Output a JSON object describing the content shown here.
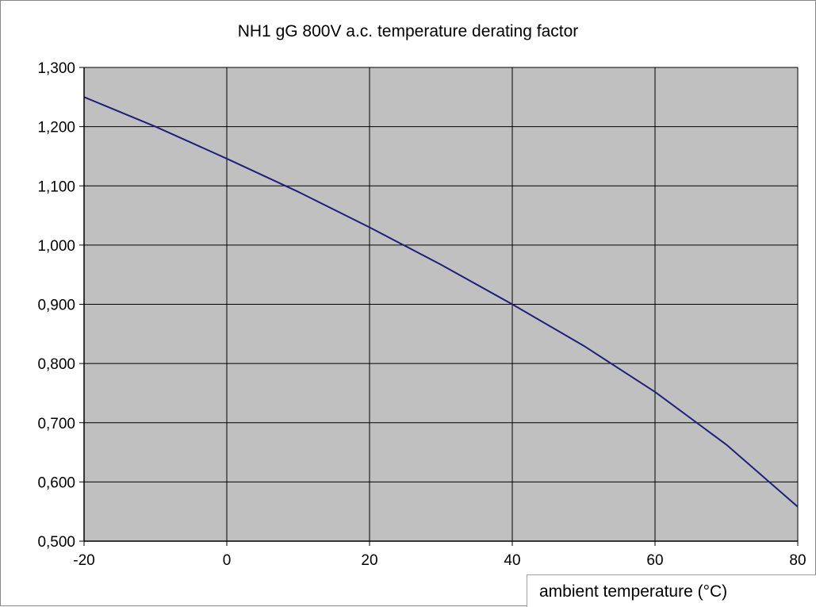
{
  "chart_data": {
    "type": "line",
    "title": "NH1 gG 800V a.c.  temperature derating factor",
    "xlabel": "ambient temperature (°C)",
    "ylabel": "",
    "xlim": [
      -20,
      80
    ],
    "ylim": [
      0.5,
      1.3
    ],
    "x_ticks": [
      -20,
      0,
      20,
      40,
      60,
      80
    ],
    "y_ticks": [
      0.5,
      0.6,
      0.7,
      0.8,
      0.9,
      1.0,
      1.1,
      1.2,
      1.3
    ],
    "x_tick_labels": [
      "-20",
      "0",
      "20",
      "40",
      "60",
      "80"
    ],
    "y_tick_labels": [
      "0,500",
      "0,600",
      "0,700",
      "0,800",
      "0,900",
      "1,000",
      "1,100",
      "1,200",
      "1,300"
    ],
    "grid": true,
    "legend": "none",
    "plot_background": "#c0c0c0",
    "line_color": "#1f1f7a",
    "series": [
      {
        "x": [
          -20,
          -10,
          0,
          10,
          20,
          30,
          40,
          50,
          60,
          70,
          80
        ],
        "y": [
          1.25,
          1.2,
          1.146,
          1.09,
          1.03,
          0.967,
          0.9,
          0.83,
          0.752,
          0.663,
          0.558
        ]
      }
    ]
  }
}
